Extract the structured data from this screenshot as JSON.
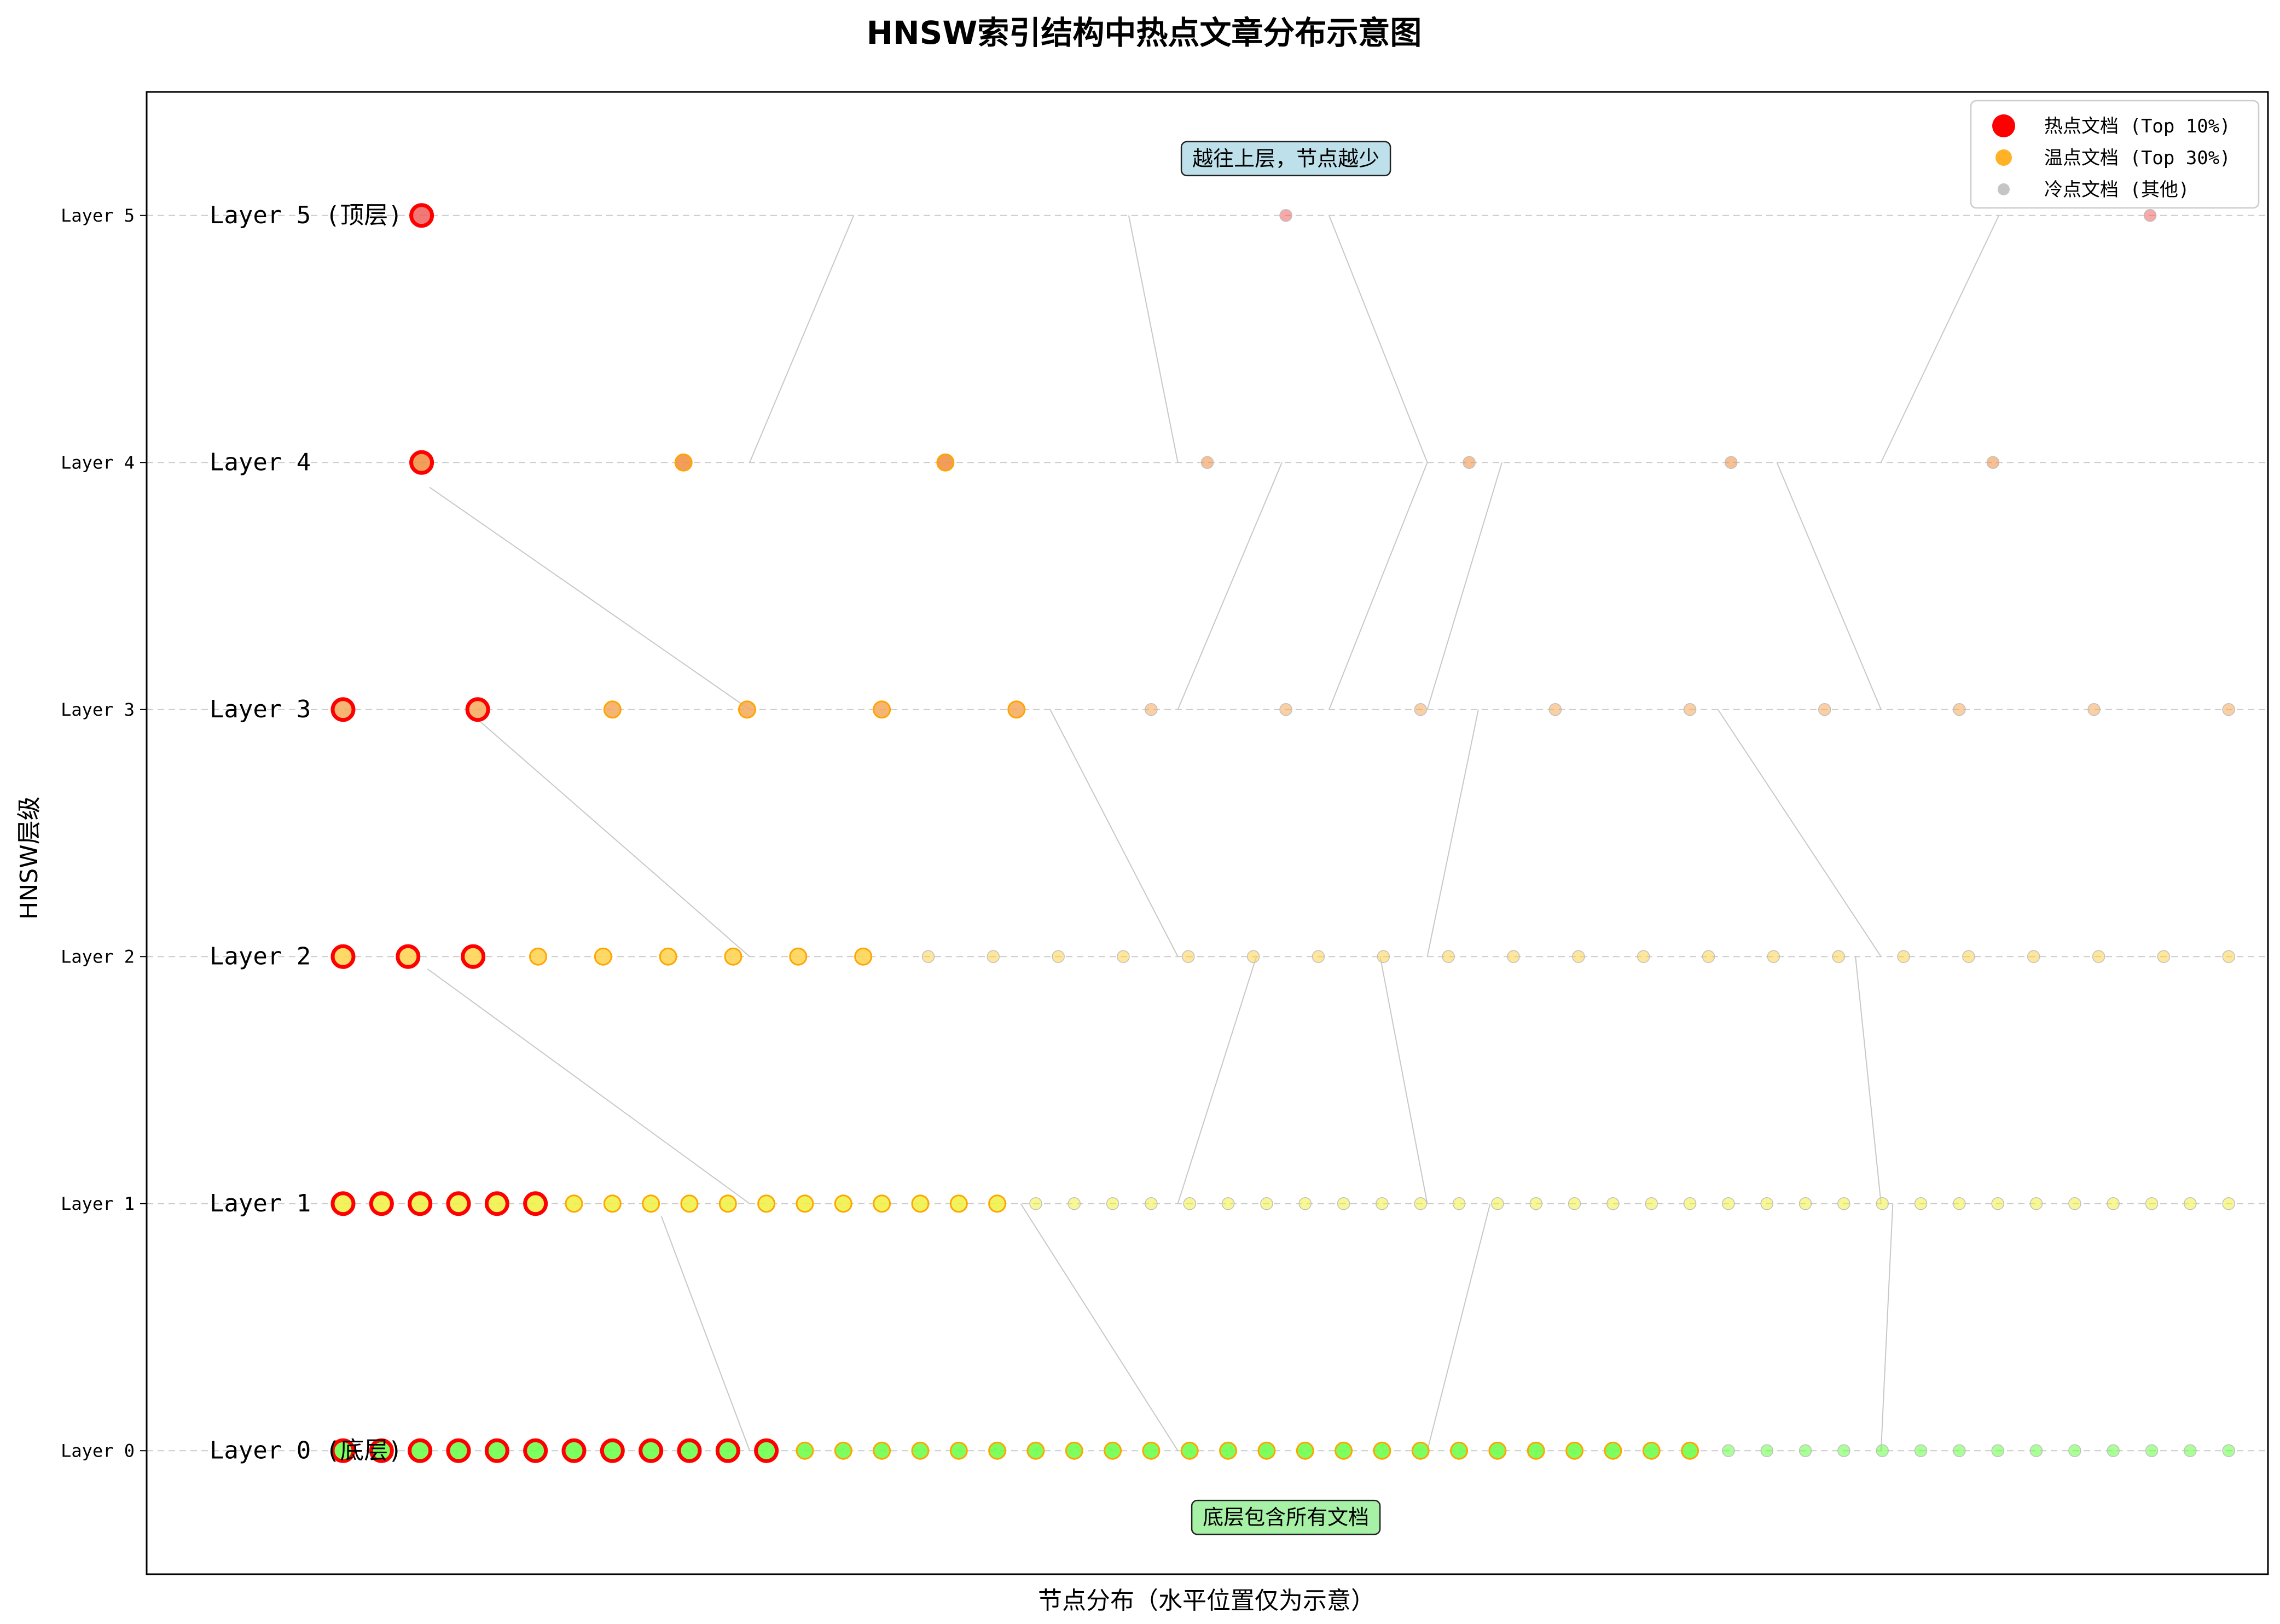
{
  "chart_data": {
    "type": "scatter",
    "title": "HNSW索引结构中热点文章分布示意图",
    "xlabel": "节点分布（水平位置仅为示意）",
    "ylabel": "HNSW层级",
    "xlim": [
      -8,
      100
    ],
    "ylim": [
      -0.5,
      5.5
    ],
    "grid": "horizontal-dashed",
    "legend_position": "top-right",
    "colors": {
      "hot_edge": "#ff0000",
      "warm": "#ffa500",
      "cold": "#bfbfbf",
      "layer_fill": [
        "#66ff44",
        "#f0f040",
        "#ffd24d",
        "#f5a85a",
        "#f08c3c",
        "#f06060"
      ],
      "edge_line": "#c8c8c8",
      "grid": "#cccccc",
      "anno_top_bg": "#add8e6",
      "anno_bottom_bg": "#90ee90"
    },
    "yticks": [
      {
        "value": 0,
        "label": "Layer 0"
      },
      {
        "value": 1,
        "label": "Layer 1"
      },
      {
        "value": 2,
        "label": "Layer 2"
      },
      {
        "value": 3,
        "label": "Layer 3"
      },
      {
        "value": 4,
        "label": "Layer 4"
      },
      {
        "value": 5,
        "label": "Layer 5"
      }
    ],
    "layer_labels": [
      {
        "layer": 0,
        "text": "Layer 0 (底层)"
      },
      {
        "layer": 1,
        "text": "Layer 1"
      },
      {
        "layer": 2,
        "text": "Layer 2"
      },
      {
        "layer": 3,
        "text": "Layer 3"
      },
      {
        "layer": 4,
        "text": "Layer 4"
      },
      {
        "layer": 5,
        "text": "Layer 5 (顶层)"
      }
    ],
    "legend": [
      {
        "key": "hot",
        "label": "热点文档 (Top 10%)"
      },
      {
        "key": "warm",
        "label": "温点文档 (Top 30%)"
      },
      {
        "key": "cold",
        "label": "冷点文档 (其他)"
      }
    ],
    "annotations": [
      {
        "text": "越往上层，节点越少",
        "x": 50,
        "y": 5.23,
        "style": "top"
      },
      {
        "text": "底层包含所有文档",
        "x": 50,
        "y": -0.27,
        "style": "bottom"
      }
    ],
    "layers": [
      {
        "layer": 0,
        "x_start": 2,
        "x_end": 98,
        "hot": 12,
        "warm": 24,
        "cold": 14
      },
      {
        "layer": 1,
        "x_start": 2,
        "x_end": 98,
        "hot": 6,
        "warm": 12,
        "cold": 32
      },
      {
        "layer": 2,
        "x_start": 2,
        "x_end": 98,
        "hot": 3,
        "warm": 6,
        "cold": 21
      },
      {
        "layer": 3,
        "x_start": 2,
        "x_end": 98,
        "hot": 2,
        "warm": 4,
        "cold": 9
      },
      {
        "layer": 4,
        "x_start": 6,
        "x_end": 86,
        "hot": 1,
        "warm": 2,
        "cold": 4
      },
      {
        "layer": 5,
        "x_start": 6,
        "x_end": 94,
        "hot": 1,
        "warm": 0,
        "cold": 2
      }
    ],
    "connections": [
      {
        "from": [
          28,
          5
        ],
        "to": [
          22.7,
          4
        ]
      },
      {
        "from": [
          42,
          5
        ],
        "to": [
          44.5,
          4
        ]
      },
      {
        "from": [
          52.2,
          5
        ],
        "to": [
          57.2,
          4
        ]
      },
      {
        "from": [
          86.3,
          5
        ],
        "to": [
          80.3,
          4
        ]
      },
      {
        "from": [
          6.4,
          3.9
        ],
        "to": [
          22.7,
          3
        ]
      },
      {
        "from": [
          49.8,
          4
        ],
        "to": [
          44.5,
          3
        ]
      },
      {
        "from": [
          61,
          4
        ],
        "to": [
          57.2,
          3
        ]
      },
      {
        "from": [
          57.2,
          4
        ],
        "to": [
          52.2,
          3
        ]
      },
      {
        "from": [
          75,
          4
        ],
        "to": [
          80.3,
          3
        ]
      },
      {
        "from": [
          9,
          2.95
        ],
        "to": [
          22.7,
          2
        ]
      },
      {
        "from": [
          38,
          3
        ],
        "to": [
          44.5,
          2
        ]
      },
      {
        "from": [
          59.8,
          3
        ],
        "to": [
          57.2,
          2
        ]
      },
      {
        "from": [
          72,
          3
        ],
        "to": [
          80.3,
          2
        ]
      },
      {
        "from": [
          6.3,
          1.95
        ],
        "to": [
          22.7,
          1
        ]
      },
      {
        "from": [
          48.5,
          2
        ],
        "to": [
          44.5,
          1
        ]
      },
      {
        "from": [
          54.8,
          2
        ],
        "to": [
          57.2,
          1
        ]
      },
      {
        "from": [
          79,
          2
        ],
        "to": [
          80.3,
          1
        ]
      },
      {
        "from": [
          18.2,
          0.95
        ],
        "to": [
          22.7,
          0
        ]
      },
      {
        "from": [
          36.5,
          1
        ],
        "to": [
          44.5,
          0
        ]
      },
      {
        "from": [
          60.4,
          1
        ],
        "to": [
          57.2,
          0
        ]
      },
      {
        "from": [
          80.9,
          1
        ],
        "to": [
          80.3,
          0
        ]
      }
    ]
  }
}
